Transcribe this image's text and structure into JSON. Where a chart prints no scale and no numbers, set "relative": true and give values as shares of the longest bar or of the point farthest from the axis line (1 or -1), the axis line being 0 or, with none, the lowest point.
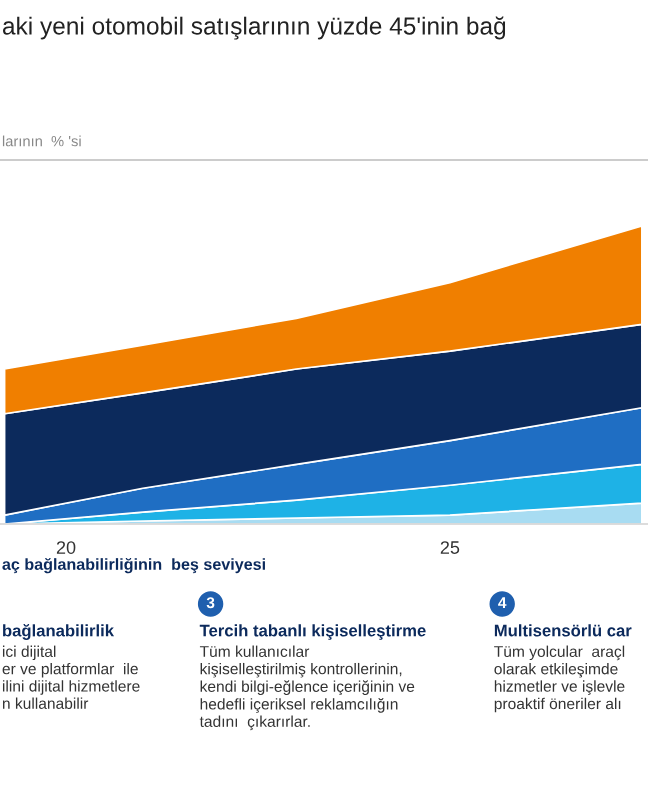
{
  "chart_data": {
    "type": "area",
    "stacked": true,
    "relative": true,
    "title": "aki yeni otomobil satışlarının yüzde 45'inin bağ",
    "x": [
      19.2,
      21,
      23,
      25,
      27.5
    ],
    "xlim": [
      19.14,
      27.58
    ],
    "xticks": [
      20,
      25
    ],
    "series": [
      {
        "color": "#a8dcf2",
        "values": [
          0,
          0.01,
          0.02,
          0.03,
          0.07
        ]
      },
      {
        "color": "#1eb2e6",
        "values": [
          0,
          0.03,
          0.06,
          0.1,
          0.13
        ]
      },
      {
        "color": "#1f6ec3",
        "values": [
          0.03,
          0.08,
          0.12,
          0.15,
          0.19
        ]
      },
      {
        "color": "#0c2a5c",
        "values": [
          0.34,
          0.32,
          0.32,
          0.3,
          0.28
        ]
      },
      {
        "color": "#f07f00",
        "values": [
          0.15,
          0.16,
          0.17,
          0.23,
          0.33
        ]
      }
    ],
    "grid": false,
    "legend": false,
    "annotations": [
      "larının  % 'si",
      "aç bağlanabilirliğinin  beş seviyesi",
      "3",
      "4",
      "bağlanabilirlik",
      "ici dijital\ner ve platformlar  ile\nilini dijital hizmetlere\nn kullanabilir",
      "Tercih tabanlı kişiselleştirme",
      "Tüm kullanıcılar\nkişiselleştirilmiş kontrollerinin,\nkendi bilgi-eğlence içeriğinin ve\nhedefli içeriksel reklamcılığın\ntadını  çıkarırlar.",
      "Multisensörlü car",
      "Tüm yolcular  araçl\nolarak etkileşimde\nhizmetler ve işlevle\nproaktif öneriler alı"
    ]
  }
}
